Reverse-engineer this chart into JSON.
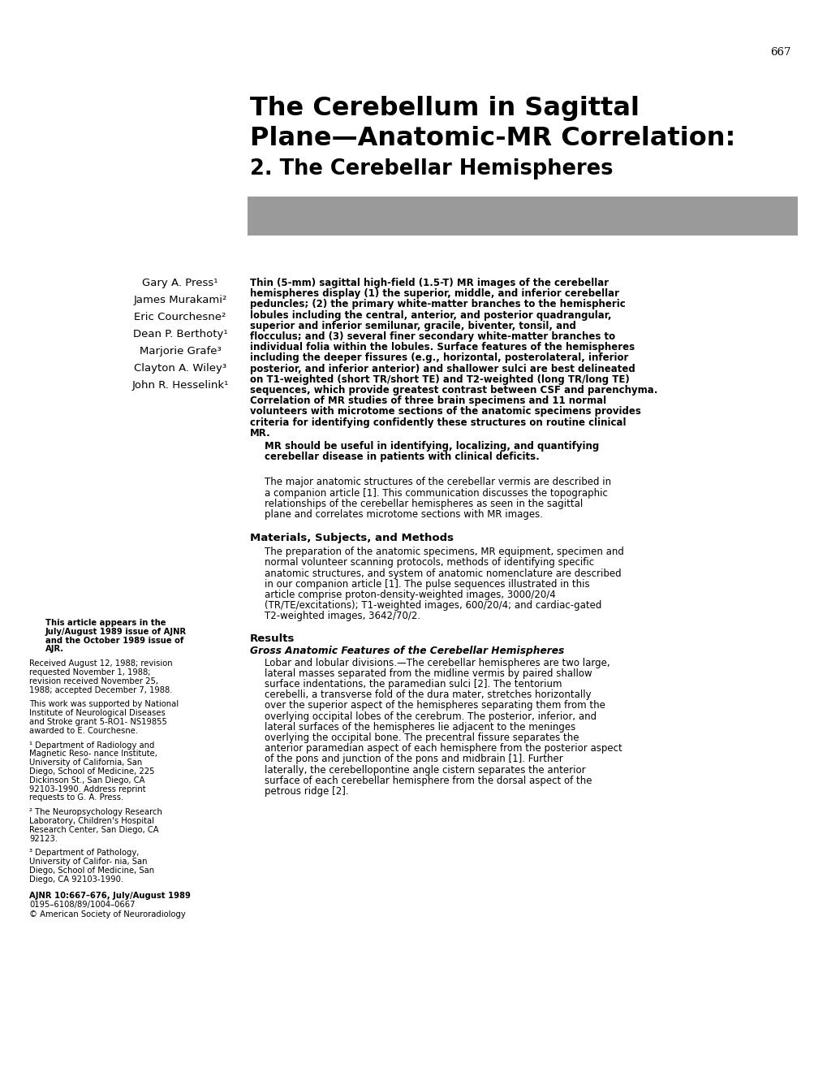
{
  "page_number": "667",
  "title_line1": "The Cerebellum in Sagittal",
  "title_line2": "Plane—Anatomic-MR Correlation:",
  "title_line3": "2. The Cerebellar Hemispheres",
  "gray_bar_color": "#9a9a9a",
  "background_color": "#ffffff",
  "authors": [
    "Gary A. Press¹",
    "James Murakami²",
    "Eric Courchesne²",
    "Dean P. Berthoty¹",
    "Marjorie Grafe³",
    "Clayton A. Wiley³",
    "John R. Hesselink¹"
  ],
  "abstract_bold": "Thin (5-mm) sagittal high-field (1.5-T) MR images of the cerebellar hemispheres display (1) the superior, middle, and inferior cerebellar peduncles; (2) the primary white-matter branches to the hemispheric lobules including the central, anterior, and posterior quadrangular, superior and inferior semilunar, gracile, biventer, tonsil, and flocculus; and (3) several finer secondary white-matter branches to individual folia within the lobules. Surface features of the hemispheres including the deeper fissures (e.g., horizontal, posterolateral, inferior posterior, and inferior anterior) and shallower sulci are best delineated on T1-weighted (short TR/short TE) and T2-weighted (long TR/long TE) sequences, which provide greatest contrast between CSF and parenchyma. Correlation of MR studies of three brain specimens and 11 normal volunteers with microtome sections of the anatomic specimens provides criteria for identifying confidently these structures on routine clinical MR.",
  "abstract_end": "MR should be useful in identifying, localizing, and quantifying cerebellar disease in patients with clinical deficits.",
  "intro_text": "The major anatomic structures of the cerebellar vermis are described in a companion article [1]. This communication discusses the topographic relationships of the cerebellar hemispheres as seen in the sagittal plane and correlates microtome sections with MR images.",
  "section1_heading": "Materials, Subjects, and Methods",
  "section1_text": "The preparation of the anatomic specimens, MR equipment, specimen and normal volunteer scanning protocols, methods of identifying specific anatomic structures, and system of anatomic nomenclature are described in our companion article [1]. The pulse sequences illustrated in this article comprise proton-density-weighted images, 3000/20/4 (TR/TE/excitations); T1-weighted images, 600/20/4; and cardiac-gated T2-weighted images, 3642/70/2.",
  "section2_heading": "Results",
  "section2_subheading": "Gross Anatomic Features of the Cerebellar Hemispheres",
  "section2_subtext": "Lobar and lobular divisions.—The cerebellar hemispheres are two large, lateral masses separated from the midline vermis by paired shallow surface indentations, the paramedian sulci [2]. The tentorium cerebelli, a transverse fold of the dura mater, stretches horizontally over the superior aspect of the hemispheres separating them from the overlying occipital lobes of the cerebrum. The posterior, inferior, and lateral surfaces of the hemispheres lie adjacent to the meninges overlying the occipital bone. The precentral fissure separates the anterior paramedian aspect of each hemisphere from the posterior aspect of the pons and junction of the pons and midbrain [1]. Further laterally, the cerebellopontine angle cistern separates the anterior surface of each cerebellar hemisphere from the dorsal aspect of the petrous ridge [2].",
  "left_col_note1": "This article appears in the July/August 1989\nissue of AJNR and the October 1989 issue of\nAJR.",
  "left_col_note2": "Received August 12, 1988; revision requested\nNovember 1, 1988; revision received November 25,\n1988; accepted December 7, 1988.",
  "left_col_note3": "This work was supported by National Institute\nof Neurological Diseases and Stroke grant 5-RO1-\nNS19855 awarded to E. Courchesne.",
  "left_col_note4": "¹ Department of Radiology and Magnetic Reso-\nnance Institute, University of California, San Diego,\nSchool of Medicine, 225 Dickinson St., San Diego,\nCA 92103-1990. Address reprint requests to G. A.\nPress.",
  "left_col_note5": "² The Neuropsychology Research Laboratory,\nChildren's Hospital Research Center, San Diego,\nCA 92123.",
  "left_col_note6": "³ Department of Pathology, University of Califor-\nnia, San Diego, School of Medicine, San Diego, CA\n92103-1990.",
  "left_col_journal": "AJNR 10:667–676, July/August 1989",
  "left_col_issn": "0195–6108/89/1004–0667",
  "left_col_copyright": "© American Society of Neuroradiology"
}
